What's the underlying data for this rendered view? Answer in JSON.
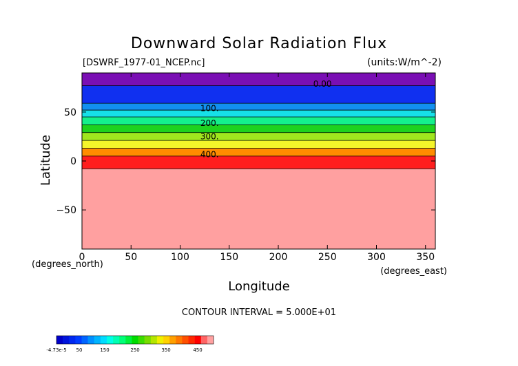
{
  "chart_data": {
    "type": "heatmap",
    "title": "Downward Solar Radiation Flux",
    "file_label": "[DSWRF_1977-01_NCEP.nc]",
    "units_label": "(units:W/m^-2)",
    "xlabel": "Longitude",
    "ylabel": "Latitude",
    "x_unit_label": "(degrees_east)",
    "y_unit_label": "(degrees_north)",
    "xlim": [
      0,
      360
    ],
    "ylim": [
      -90,
      90
    ],
    "x_ticks": [
      0,
      50,
      100,
      150,
      200,
      250,
      300,
      350
    ],
    "y_ticks": [
      50,
      0,
      -50
    ],
    "contour_interval_label": "CONTOUR INTERVAL = 5.000E+01",
    "bands": [
      {
        "lat_from": 77,
        "lat_to": 90,
        "value_range": [
          -4.73e-05,
          50
        ],
        "color": "#7a0fb4"
      },
      {
        "lat_from": 59,
        "lat_to": 77,
        "value_range": [
          50,
          100
        ],
        "color": "#1030f0"
      },
      {
        "lat_from": 52,
        "lat_to": 59,
        "value_range": [
          100,
          150
        ],
        "color": "#1290f0"
      },
      {
        "lat_from": 45,
        "lat_to": 52,
        "value_range": [
          150,
          200
        ],
        "color": "#16e0e8"
      },
      {
        "lat_from": 37,
        "lat_to": 45,
        "value_range": [
          200,
          250
        ],
        "color": "#14f08c"
      },
      {
        "lat_from": 29,
        "lat_to": 37,
        "value_range": [
          250,
          300
        ],
        "color": "#1ed21e"
      },
      {
        "lat_from": 21,
        "lat_to": 29,
        "value_range": [
          300,
          350
        ],
        "color": "#a0e61e"
      },
      {
        "lat_from": 13,
        "lat_to": 21,
        "value_range": [
          350,
          400
        ],
        "color": "#f5f52a"
      },
      {
        "lat_from": 5,
        "lat_to": 13,
        "value_range": [
          400,
          450
        ],
        "color": "#ff8c00"
      },
      {
        "lat_from": -8,
        "lat_to": 5,
        "value_range": [
          450,
          500
        ],
        "color": "#ff1e1e"
      },
      {
        "lat_from": -90,
        "lat_to": -8,
        "value_range": [
          500,
          550
        ],
        "color": "#ffa0a0"
      }
    ],
    "contour_labels": [
      {
        "text": "0.00",
        "lon": 245,
        "lat": 76
      },
      {
        "text": "100.",
        "lon": 130,
        "lat": 51
      },
      {
        "text": "200.",
        "lon": 130,
        "lat": 36
      },
      {
        "text": "300.",
        "lon": 130,
        "lat": 22
      },
      {
        "text": "400.",
        "lon": 130,
        "lat": 4
      }
    ],
    "colorbar": {
      "labels": [
        "-4.73e-5",
        "50",
        "150",
        "250",
        "350",
        "450"
      ],
      "colors": [
        "#0000c8",
        "#0014dc",
        "#0028f0",
        "#003cff",
        "#0064ff",
        "#0090ff",
        "#00b4ff",
        "#00dcff",
        "#00ffe6",
        "#00ffb4",
        "#00ff78",
        "#00f03c",
        "#00dc00",
        "#3cdc00",
        "#78dc00",
        "#b4e600",
        "#f0f000",
        "#ffd200",
        "#ffa000",
        "#ff7800",
        "#ff5000",
        "#ff2800",
        "#ff0000",
        "#ff6464",
        "#ffa0a0"
      ]
    }
  }
}
